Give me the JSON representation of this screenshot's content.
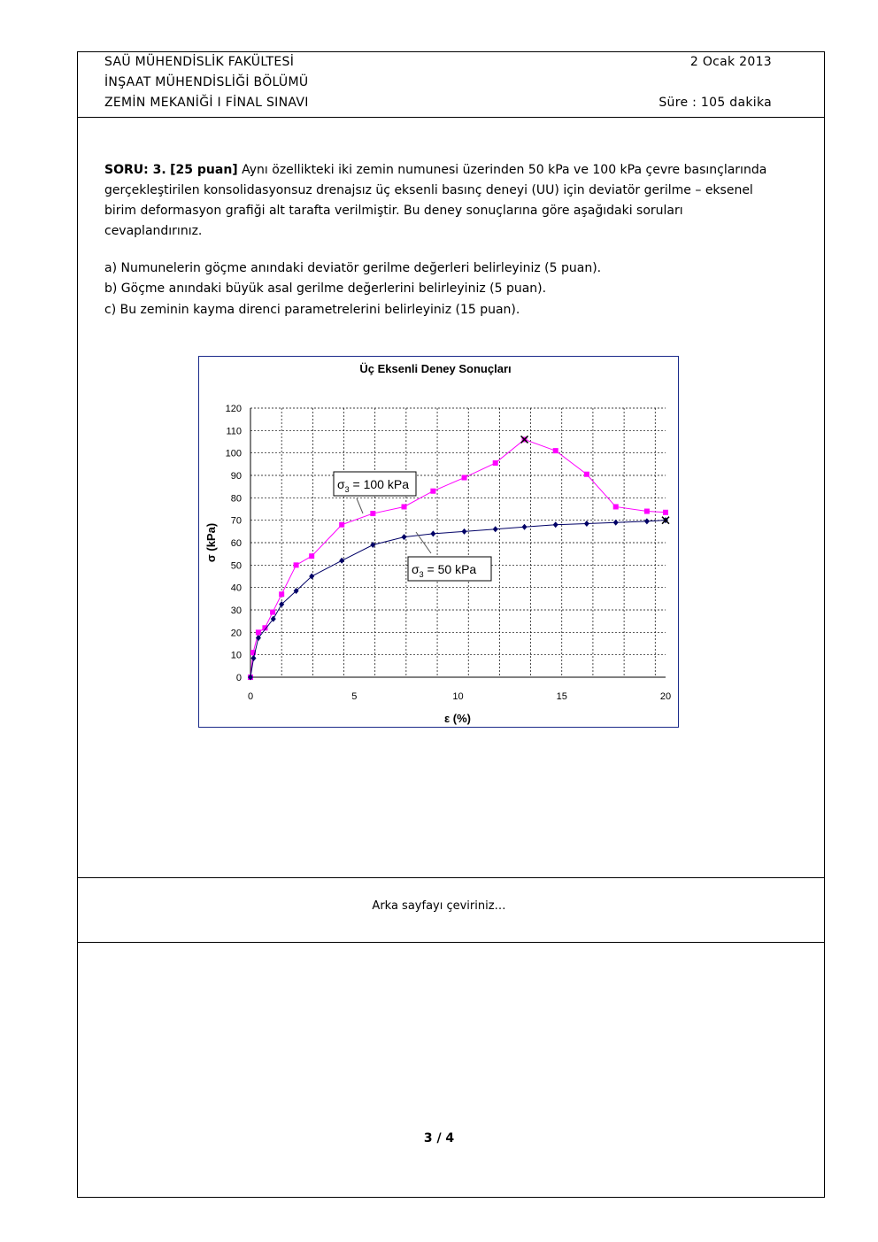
{
  "header": {
    "line1": "SAÜ MÜHENDİSLİK FAKÜLTESİ",
    "line2": "İNŞAAT MÜHENDİSLİĞİ BÖLÜMÜ",
    "line3": "ZEMİN MEKANİĞİ I FİNAL SINAVI",
    "date": "2 Ocak 2013",
    "duration": "Süre : 105 dakika"
  },
  "question": {
    "label": "SORU: 3.",
    "points": "[25 puan]",
    "text": "Aynı özellikteki iki zemin numunesi üzerinden 50 kPa ve 100 kPa çevre basınçlarında gerçekleştirilen konsolidasyonsuz drenajsız üç eksenli basınç deneyi (UU) için deviatör gerilme – eksenel birim deformasyon grafiği alt tarafta verilmiştir. Bu deney sonuçlarına göre aşağıdaki soruları cevaplandırınız.",
    "a": "a) Numunelerin göçme anındaki deviatör gerilme değerleri belirleyiniz (5 puan).",
    "b": "b) Göçme anındaki büyük asal gerilme değerlerini belirleyiniz (5 puan).",
    "c": "c) Bu zeminin kayma direnci parametrelerini belirleyiniz (15 puan)."
  },
  "chart_data": {
    "type": "line",
    "title": "Üç Eksenli Deney Sonuçları",
    "xlabel": "ε (%)",
    "ylabel": "σ (kPa)",
    "xlim": [
      0,
      20
    ],
    "ylim": [
      0,
      120
    ],
    "xticks": [
      0,
      5,
      10,
      15,
      20
    ],
    "yticks": [
      0,
      10,
      20,
      30,
      40,
      50,
      60,
      70,
      80,
      90,
      100,
      110,
      120
    ],
    "grid": true,
    "series": [
      {
        "name": "σ3 = 100 kPa",
        "label_main": "σ",
        "label_sub": "3",
        "label_rest": " = 100 kPa",
        "color": "#ff00ff",
        "marker": "square",
        "x": [
          0,
          0.13,
          0.38,
          0.7,
          1.07,
          1.5,
          2.2,
          2.95,
          4.4,
          5.9,
          7.4,
          8.8,
          10.3,
          11.8,
          13.2,
          14.7,
          16.2,
          17.6,
          19.1,
          20
        ],
        "y": [
          0,
          11,
          20,
          22,
          29,
          37,
          50,
          54,
          68,
          73,
          76,
          83,
          89,
          95.5,
          106,
          101,
          90.5,
          76,
          74,
          73.5
        ],
        "failure": [
          13.2,
          106
        ]
      },
      {
        "name": "σ3 = 50 kPa",
        "label_main": "σ",
        "label_sub": "3",
        "label_rest": " = 50 kPa",
        "color": "#000066",
        "marker": "diamond",
        "x": [
          0,
          0.15,
          0.38,
          1.1,
          1.5,
          2.2,
          2.95,
          4.4,
          5.9,
          7.4,
          8.8,
          10.3,
          11.8,
          13.2,
          14.7,
          16.2,
          17.6,
          19.1,
          20
        ],
        "y": [
          0,
          8.5,
          17.5,
          26,
          32.5,
          38.5,
          45,
          52,
          59,
          62.5,
          64,
          65,
          66,
          67,
          68,
          68.5,
          69,
          69.5,
          70
        ],
        "failure": [
          20,
          70
        ]
      }
    ]
  },
  "footer": {
    "turn": "Arka sayfayı çeviriniz…",
    "page": "3 / 4"
  }
}
